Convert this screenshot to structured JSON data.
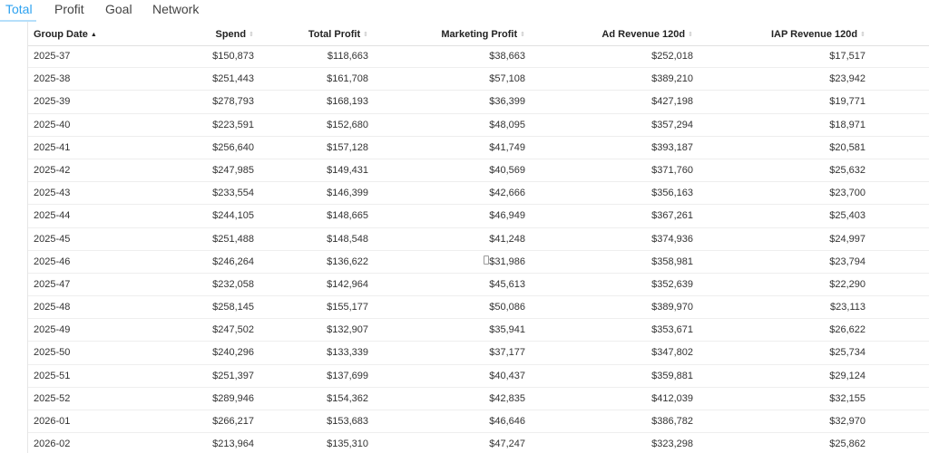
{
  "tabs": [
    {
      "label": "Total",
      "active": true
    },
    {
      "label": "Profit",
      "active": false
    },
    {
      "label": "Goal",
      "active": false
    },
    {
      "label": "Network",
      "active": false
    }
  ],
  "table": {
    "columns": [
      {
        "label": "Group Date",
        "sort": "ascending"
      },
      {
        "label": "Spend",
        "sort": "none"
      },
      {
        "label": "Total Profit",
        "sort": "none"
      },
      {
        "label": "Marketing Profit",
        "sort": "none"
      },
      {
        "label": "Ad Revenue 120d",
        "sort": "none"
      },
      {
        "label": "IAP Revenue 120d",
        "sort": "none"
      }
    ],
    "rows": [
      [
        "2025-37",
        "$150,873",
        "$118,663",
        "$38,663",
        "$252,018",
        "$17,517"
      ],
      [
        "2025-38",
        "$251,443",
        "$161,708",
        "$57,108",
        "$389,210",
        "$23,942"
      ],
      [
        "2025-39",
        "$278,793",
        "$168,193",
        "$36,399",
        "$427,198",
        "$19,771"
      ],
      [
        "2025-40",
        "$223,591",
        "$152,680",
        "$48,095",
        "$357,294",
        "$18,971"
      ],
      [
        "2025-41",
        "$256,640",
        "$157,128",
        "$41,749",
        "$393,187",
        "$20,581"
      ],
      [
        "2025-42",
        "$247,985",
        "$149,431",
        "$40,569",
        "$371,760",
        "$25,632"
      ],
      [
        "2025-43",
        "$233,554",
        "$146,399",
        "$42,666",
        "$356,163",
        "$23,700"
      ],
      [
        "2025-44",
        "$244,105",
        "$148,665",
        "$46,949",
        "$367,261",
        "$25,403"
      ],
      [
        "2025-45",
        "$251,488",
        "$148,548",
        "$41,248",
        "$374,936",
        "$24,997"
      ],
      [
        "2025-46",
        "$246,264",
        "$136,622",
        "$31,986",
        "$358,981",
        "$23,794"
      ],
      [
        "2025-47",
        "$232,058",
        "$142,964",
        "$45,613",
        "$352,639",
        "$22,290"
      ],
      [
        "2025-48",
        "$258,145",
        "$155,177",
        "$50,086",
        "$389,970",
        "$23,113"
      ],
      [
        "2025-49",
        "$247,502",
        "$132,907",
        "$35,941",
        "$353,671",
        "$26,622"
      ],
      [
        "2025-50",
        "$240,296",
        "$133,339",
        "$37,177",
        "$347,802",
        "$25,734"
      ],
      [
        "2025-51",
        "$251,397",
        "$137,699",
        "$40,437",
        "$359,881",
        "$29,124"
      ],
      [
        "2025-52",
        "$289,946",
        "$154,362",
        "$42,835",
        "$412,039",
        "$32,155"
      ],
      [
        "2026-01",
        "$266,217",
        "$153,683",
        "$46,646",
        "$386,782",
        "$32,970"
      ],
      [
        "2026-02",
        "$213,964",
        "$135,310",
        "$47,247",
        "$323,298",
        "$25,862"
      ]
    ]
  },
  "colors": {
    "accent": "#2ea2f0",
    "text": "#333333",
    "border": "#eeeeee"
  }
}
